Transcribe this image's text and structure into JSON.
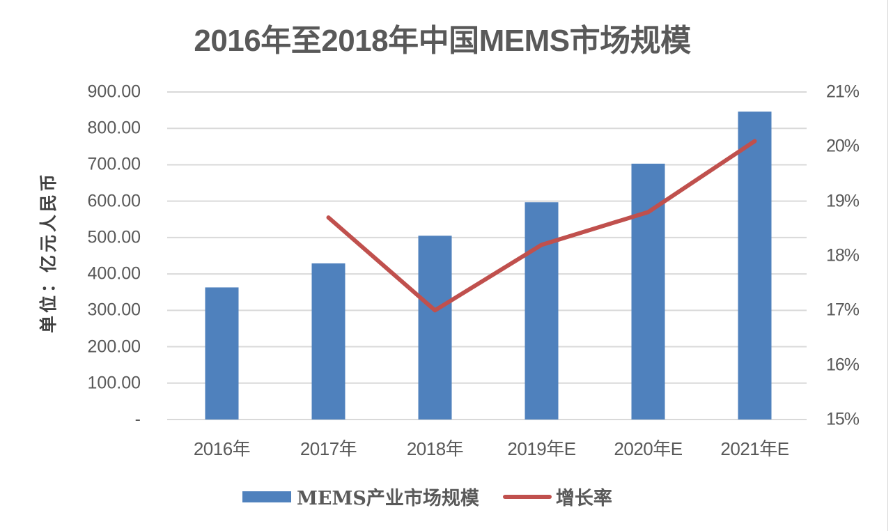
{
  "title": "2016年至2018年中国MEMS市场规模",
  "y_axis_label": "单位：亿元人民币",
  "left_axis_ticks": [
    "900.00",
    "800.00",
    "700.00",
    "600.00",
    "500.00",
    "400.00",
    "300.00",
    "200.00",
    "100.00",
    "-"
  ],
  "right_axis_ticks": [
    "21%",
    "20%",
    "19%",
    "18%",
    "17%",
    "16%",
    "15%"
  ],
  "categories": [
    "2016年",
    "2017年",
    "2018年",
    "2019年E",
    "2020年E",
    "2021年E"
  ],
  "legend": {
    "bar_label": "MEMS产业市场规模",
    "line_label": "增长率"
  },
  "colors": {
    "bar": "#4f81bd",
    "line": "#c0504d",
    "grid": "#d9d9d9",
    "text": "#595959"
  },
  "chart_data": {
    "type": "bar",
    "combo": "bar+line (dual axis)",
    "title": "2016年至2018年中国MEMS市场规模",
    "xlabel": "",
    "ylabel": "单位：亿元人民币",
    "y2label": "",
    "categories": [
      "2016年",
      "2017年",
      "2018年",
      "2019年E",
      "2020年E",
      "2021年E"
    ],
    "series": [
      {
        "name": "MEMS产业市场规模",
        "type": "bar",
        "axis": "left",
        "values": [
          363,
          429,
          505,
          597,
          703,
          846
        ]
      },
      {
        "name": "增长率",
        "type": "line",
        "axis": "right",
        "unit": "%",
        "values": [
          null,
          18.7,
          17.0,
          18.2,
          18.8,
          20.1
        ]
      }
    ],
    "ylim": [
      0,
      900
    ],
    "y2lim": [
      15,
      21
    ],
    "yticks": [
      0,
      100,
      200,
      300,
      400,
      500,
      600,
      700,
      800,
      900
    ],
    "y2ticks": [
      15,
      16,
      17,
      18,
      19,
      20,
      21
    ],
    "grid": true,
    "legend_position": "bottom"
  }
}
